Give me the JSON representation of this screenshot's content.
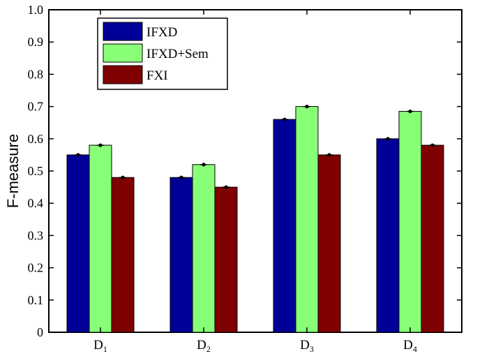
{
  "chart_data": {
    "type": "bar",
    "ylabel": "F-measure",
    "xlabel": "",
    "ylim": [
      0,
      1.0
    ],
    "yticks": [
      "0",
      "0.1",
      "0.2",
      "0.3",
      "0.4",
      "0.5",
      "0.6",
      "0.7",
      "0.8",
      "0.9",
      "1.0"
    ],
    "categories": [
      {
        "base": "D",
        "sub": "1"
      },
      {
        "base": "D",
        "sub": "2"
      },
      {
        "base": "D",
        "sub": "3"
      },
      {
        "base": "D",
        "sub": "4"
      }
    ],
    "series": [
      {
        "name": "IFXD",
        "color": "#000099",
        "values": [
          0.55,
          0.48,
          0.66,
          0.6
        ]
      },
      {
        "name": "IFXD+Sem",
        "color": "#88ff77",
        "values": [
          0.58,
          0.52,
          0.7,
          0.685
        ]
      },
      {
        "name": "FXI",
        "color": "#7f0000",
        "values": [
          0.48,
          0.45,
          0.55,
          0.58
        ]
      }
    ],
    "legend_position": "top-left",
    "grid": false
  }
}
